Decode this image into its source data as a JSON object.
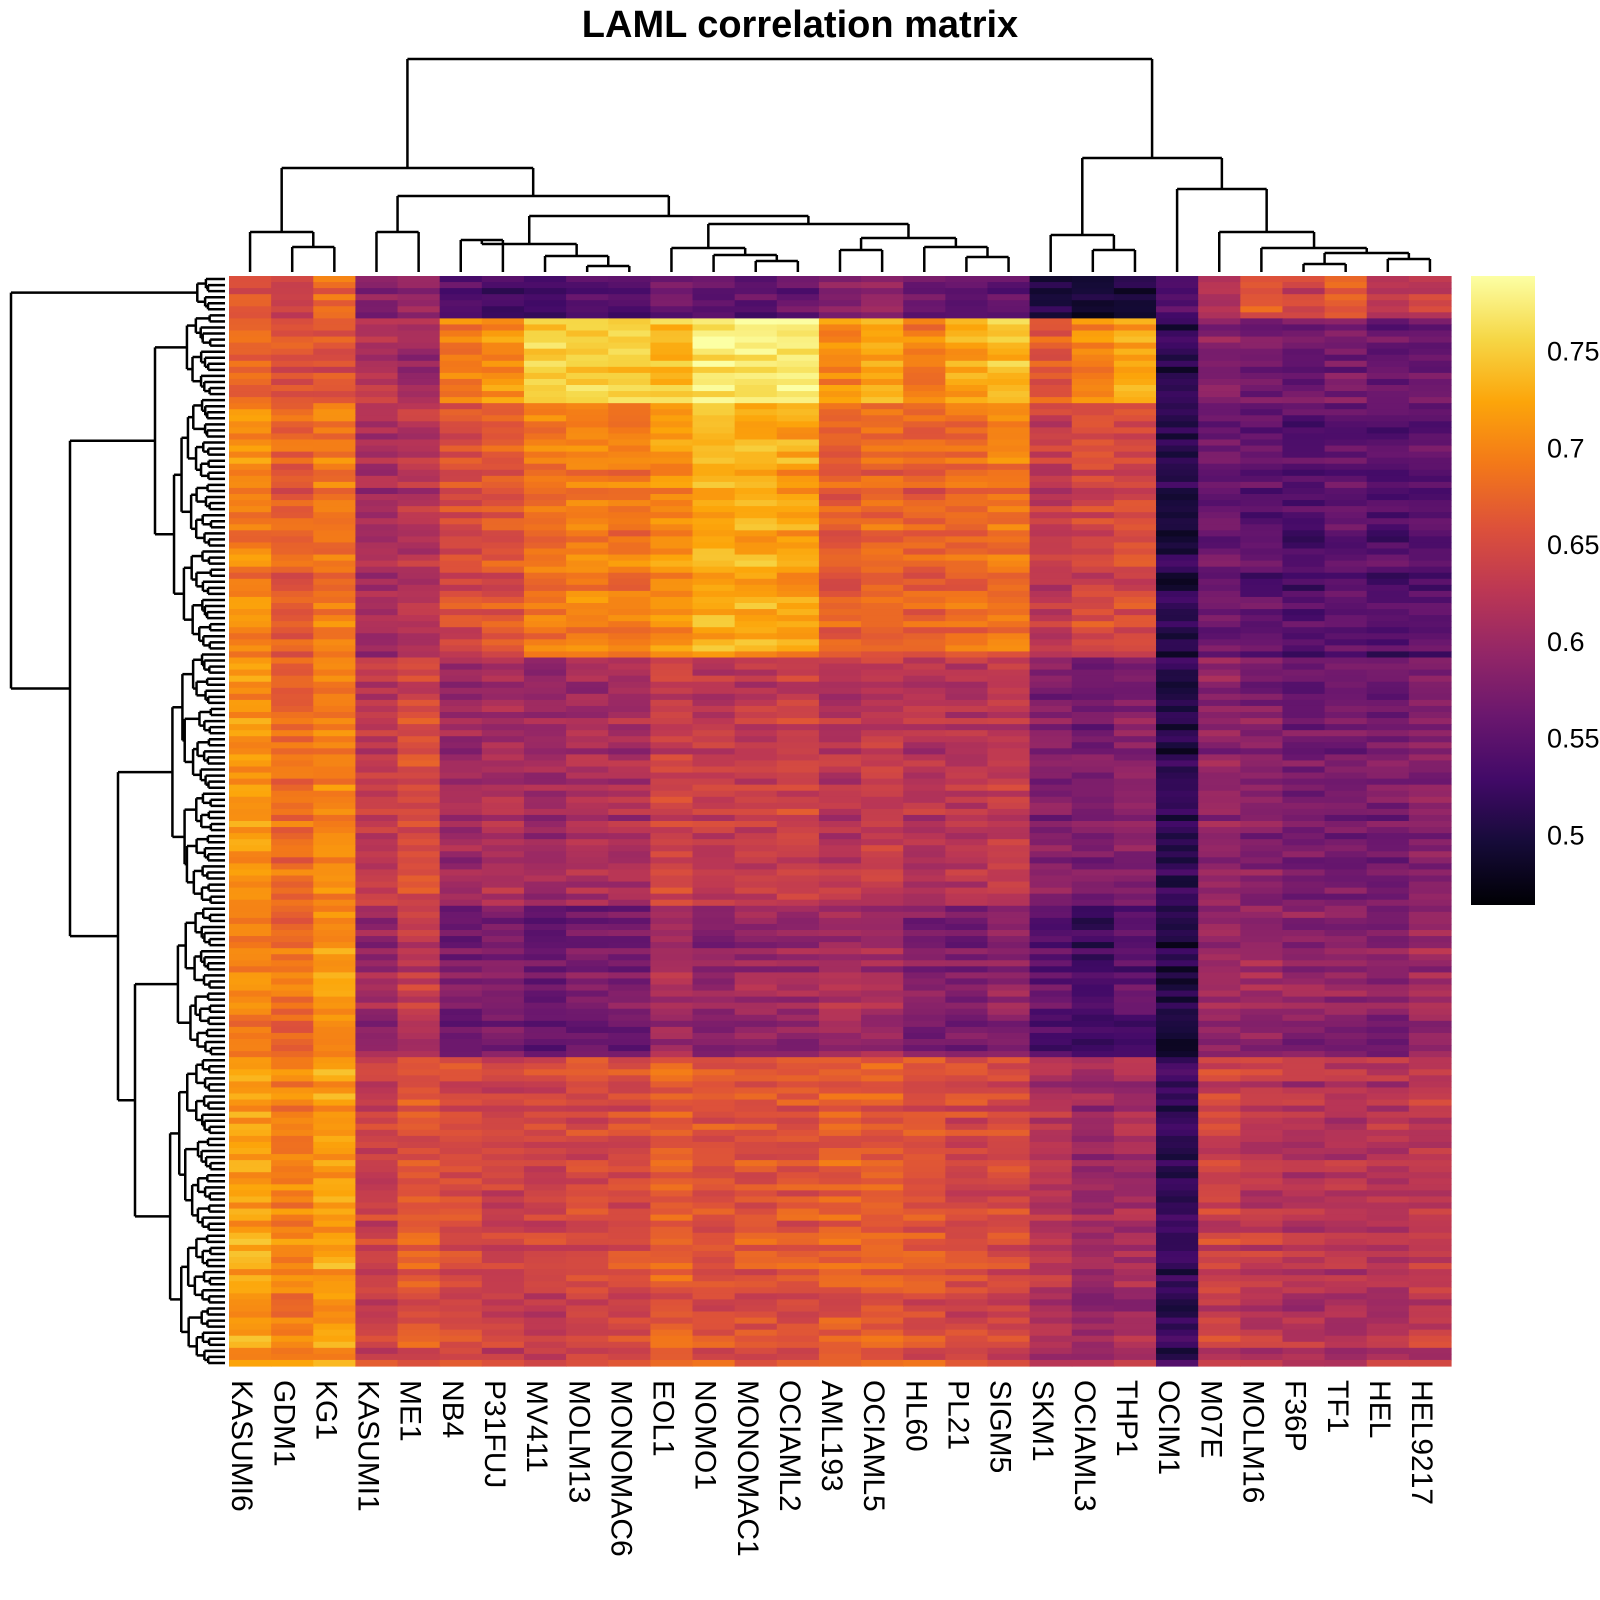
{
  "chart_data": {
    "type": "heatmap",
    "title": "LAML correlation matrix",
    "columns": [
      "KASUMI6",
      "GDM1",
      "KG1",
      "KASUMI1",
      "ME1",
      "NB4",
      "P31FUJ",
      "MV411",
      "MOLM13",
      "MONOMAC6",
      "EOL1",
      "NOMO1",
      "MONOMAC1",
      "OCIAML2",
      "AML193",
      "OCIAML5",
      "HL60",
      "PL21",
      "SIGM5",
      "SKM1",
      "OCIAML3",
      "THP1",
      "OCIM1",
      "M07E",
      "MOLM16",
      "F36P",
      "TF1",
      "HEL",
      "HEL9217"
    ],
    "row_count": 180,
    "colorbar": {
      "range": [
        0.465,
        0.79
      ],
      "ticks": [
        0.5,
        0.55,
        0.6,
        0.65,
        0.7,
        0.75
      ],
      "tick_labels": [
        "0.5",
        "0.55",
        "0.6",
        "0.65",
        "0.7",
        "0.75"
      ],
      "colormap": "inferno"
    },
    "column_dendrogram": true,
    "row_dendrogram": true,
    "block_values": {
      "row_blocks": [
        "header",
        "yellow-top",
        "mid-upper",
        "mid-lower",
        "dark-band",
        "lower"
      ],
      "row_fractions": [
        0.035,
        0.08,
        0.23,
        0.23,
        0.14,
        0.285
      ],
      "values": [
        [
          0.66,
          0.64,
          0.68,
          0.58,
          0.59,
          0.54,
          0.53,
          0.52,
          0.54,
          0.54,
          0.56,
          0.55,
          0.55,
          0.56,
          0.58,
          0.59,
          0.56,
          0.55,
          0.55,
          0.5,
          0.49,
          0.5,
          0.54,
          0.62,
          0.66,
          0.64,
          0.66,
          0.62,
          0.63
        ],
        [
          0.67,
          0.66,
          0.66,
          0.62,
          0.6,
          0.69,
          0.71,
          0.75,
          0.75,
          0.75,
          0.74,
          0.77,
          0.77,
          0.77,
          0.7,
          0.72,
          0.69,
          0.72,
          0.74,
          0.66,
          0.7,
          0.72,
          0.51,
          0.58,
          0.57,
          0.56,
          0.57,
          0.56,
          0.56
        ],
        [
          0.7,
          0.67,
          0.69,
          0.61,
          0.62,
          0.65,
          0.66,
          0.69,
          0.7,
          0.69,
          0.71,
          0.73,
          0.73,
          0.72,
          0.67,
          0.68,
          0.67,
          0.68,
          0.69,
          0.63,
          0.65,
          0.65,
          0.51,
          0.56,
          0.55,
          0.54,
          0.55,
          0.54,
          0.55
        ],
        [
          0.71,
          0.68,
          0.7,
          0.63,
          0.65,
          0.6,
          0.61,
          0.6,
          0.61,
          0.61,
          0.64,
          0.63,
          0.63,
          0.64,
          0.62,
          0.63,
          0.62,
          0.62,
          0.63,
          0.58,
          0.57,
          0.58,
          0.51,
          0.59,
          0.58,
          0.57,
          0.57,
          0.57,
          0.58
        ],
        [
          0.7,
          0.68,
          0.71,
          0.6,
          0.63,
          0.57,
          0.58,
          0.56,
          0.57,
          0.57,
          0.61,
          0.59,
          0.6,
          0.6,
          0.61,
          0.61,
          0.58,
          0.58,
          0.59,
          0.55,
          0.53,
          0.55,
          0.5,
          0.6,
          0.6,
          0.59,
          0.59,
          0.58,
          0.6
        ],
        [
          0.72,
          0.7,
          0.72,
          0.64,
          0.66,
          0.65,
          0.64,
          0.64,
          0.65,
          0.65,
          0.67,
          0.66,
          0.66,
          0.66,
          0.67,
          0.67,
          0.66,
          0.65,
          0.65,
          0.62,
          0.6,
          0.61,
          0.52,
          0.64,
          0.63,
          0.62,
          0.62,
          0.62,
          0.63
        ]
      ]
    }
  }
}
